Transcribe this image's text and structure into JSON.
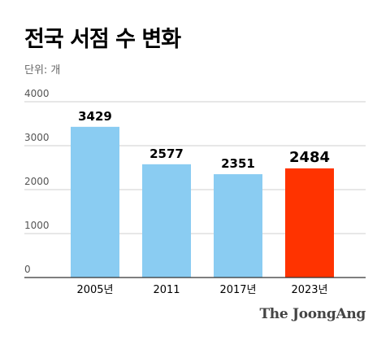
{
  "title": "전국 서점 수 변화",
  "unit_label": "단위: 개",
  "source": "The JoongAng",
  "colors": {
    "bar": "#8ACCF2",
    "highlight": "#FF3300",
    "grid": "#CFCFCF",
    "axis": "#333333",
    "tick_text": "#555555"
  },
  "chart_data": {
    "type": "bar",
    "categories": [
      "2005년",
      "2011",
      "2017년",
      "2023년"
    ],
    "values": [
      3429,
      2577,
      2351,
      2484
    ],
    "data_labels": [
      "3429",
      "2577",
      "2351",
      "2484"
    ],
    "y_ticks": [
      "0",
      "1000",
      "2000",
      "3000",
      "4000"
    ],
    "ylim": [
      0,
      4000
    ],
    "highlight_index": 3,
    "grid": true,
    "title": "전국 서점 수 변화",
    "ylabel": "단위: 개"
  }
}
